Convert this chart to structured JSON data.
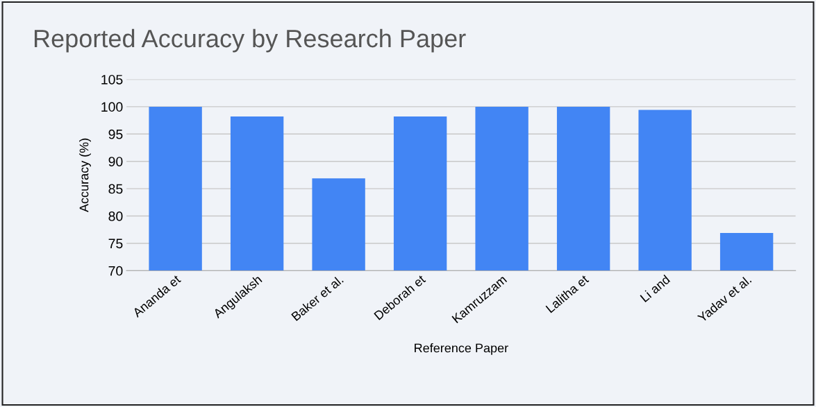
{
  "chart_data": {
    "type": "bar",
    "title": "Reported Accuracy by Research Paper",
    "xlabel": "Reference Paper",
    "ylabel": "Accuracy (%)",
    "categories": [
      "Ananda et",
      "Angulaksh",
      "Baker et al.",
      "Deborah et",
      "Kamruzzam",
      "Lalitha et",
      "Li and",
      "Yadav et al."
    ],
    "values": [
      100,
      98.2,
      86.9,
      98.2,
      100,
      100,
      99.4,
      76.9
    ],
    "color": "#4285f4",
    "ylim": [
      70,
      105
    ],
    "yticks": [
      70,
      75,
      80,
      85,
      90,
      95,
      100,
      105
    ],
    "grid": "y",
    "legend": false
  }
}
